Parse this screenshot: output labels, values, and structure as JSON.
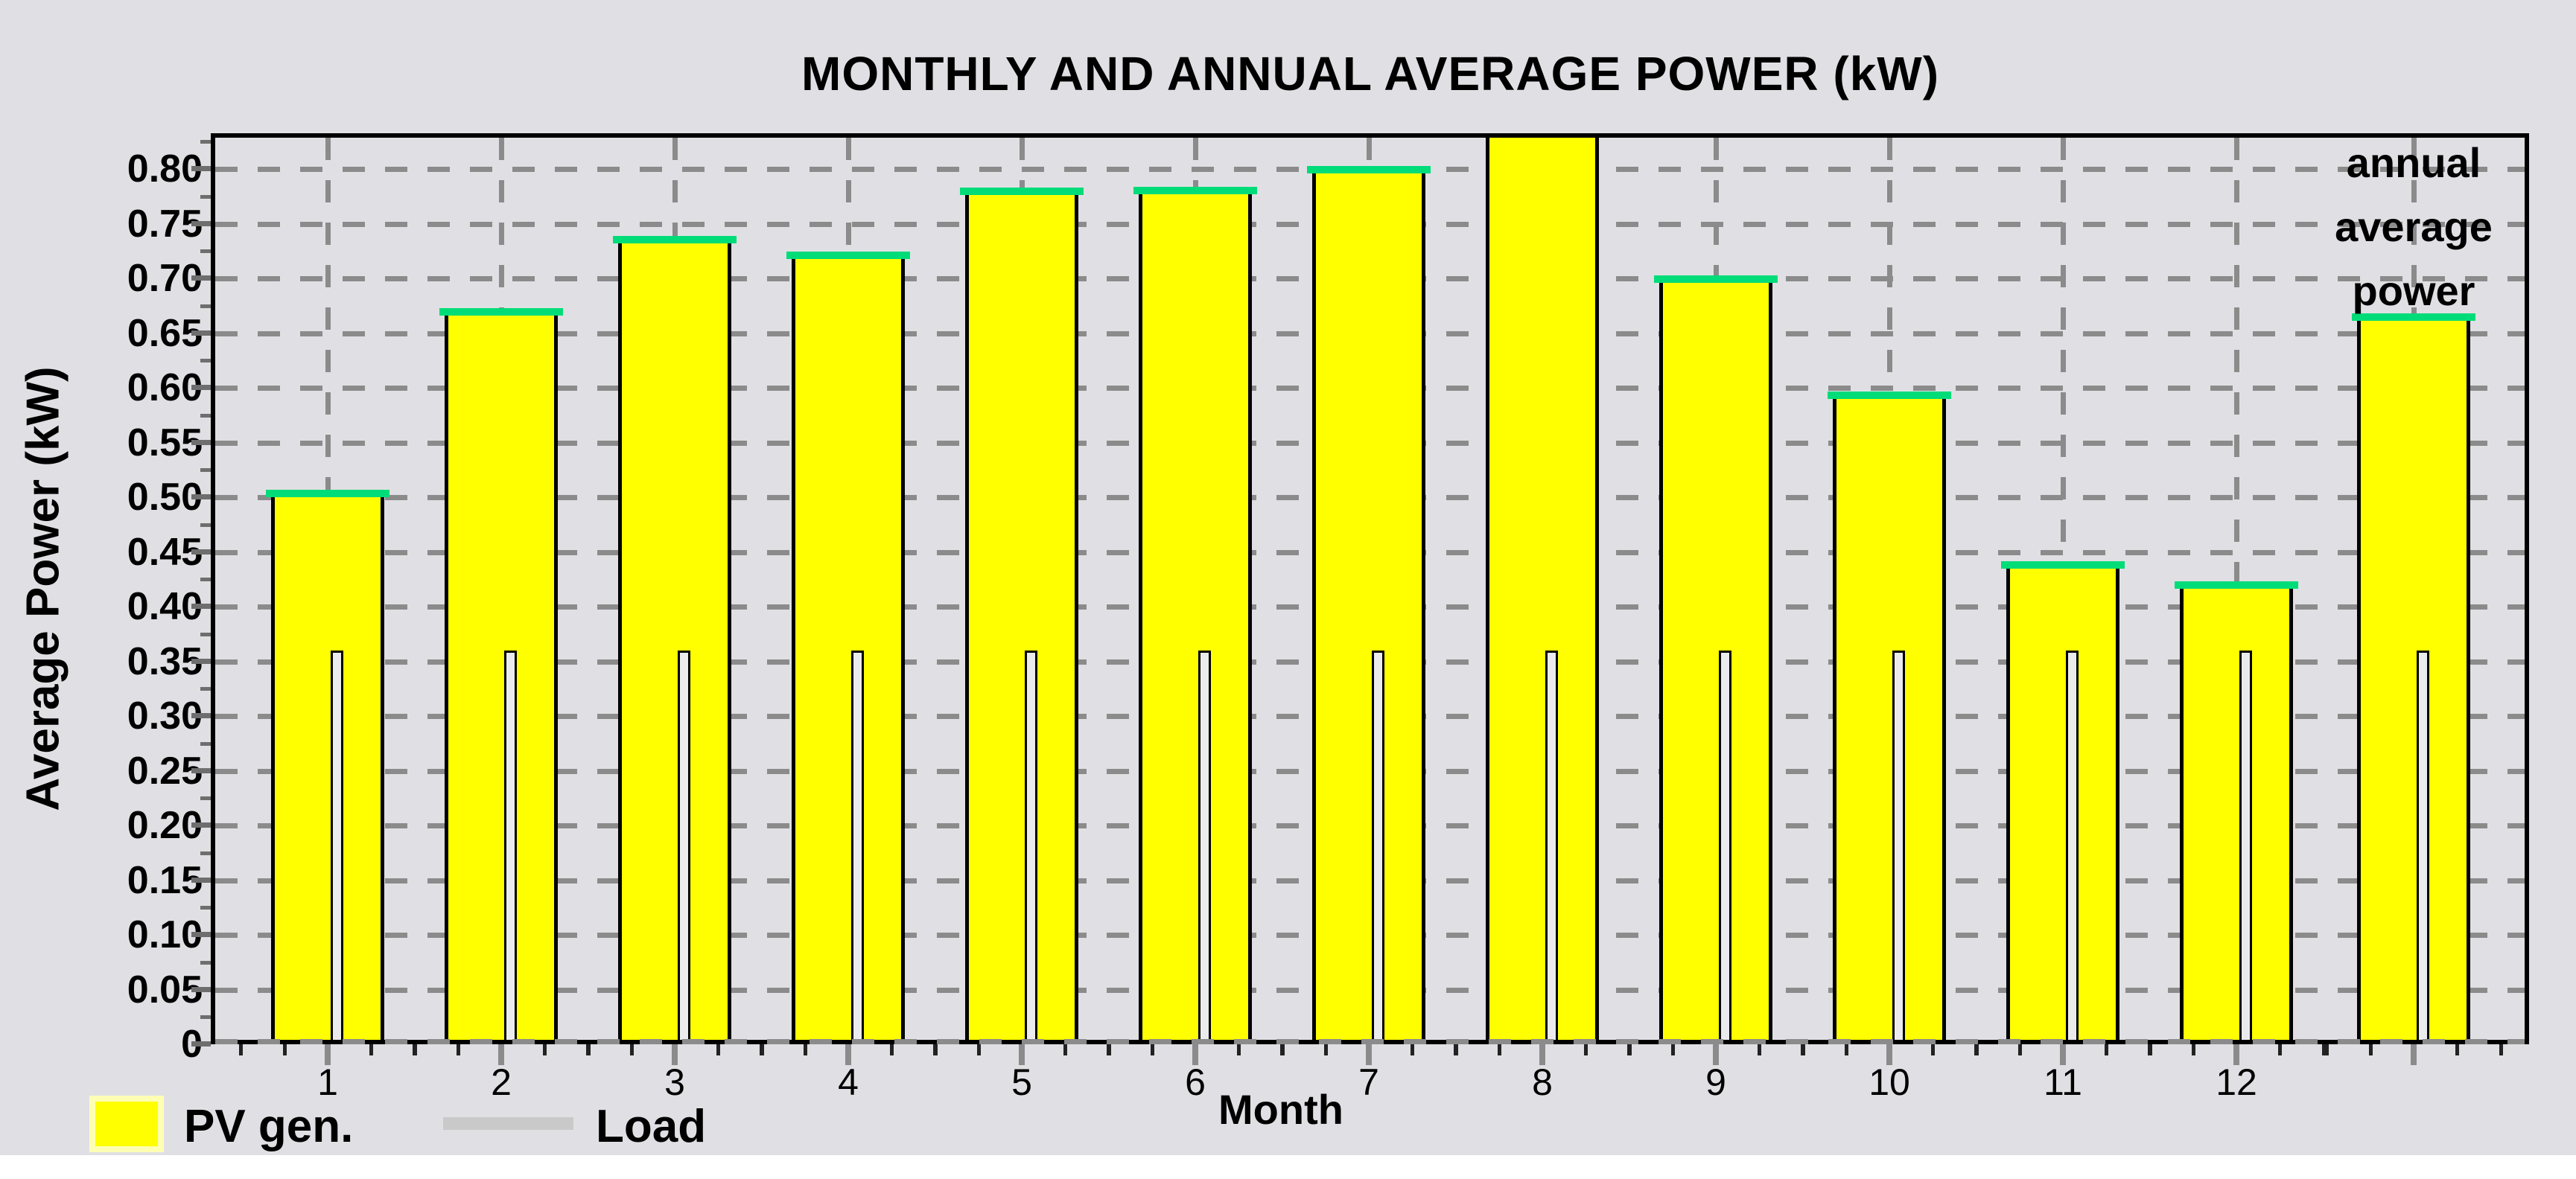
{
  "title": "MONTHLY AND ANNUAL AVERAGE POWER (kW)",
  "annual_label_lines": [
    "annual",
    "average",
    "power"
  ],
  "legend": {
    "pv_label": "PV gen.",
    "load_label": "Load"
  },
  "colors": {
    "panel_bg": "#e0e0e4",
    "grid": "#8b8b8b",
    "pv_fill": "#ffff00",
    "pv_edge": "#000000",
    "pv_cap": "#00dc78",
    "load_fill": "#ebebee",
    "load_edge": "#000000",
    "legend_line": "#c9c9c9",
    "legend_swatch_border": "#ffffb4",
    "text": "#000000"
  },
  "chart_data": {
    "type": "bar",
    "title": "MONTHLY AND ANNUAL AVERAGE POWER (kW)",
    "xlabel": "Month",
    "ylabel": "Average Power (kW)",
    "categories": [
      "1",
      "2",
      "3",
      "4",
      "5",
      "6",
      "7",
      "8",
      "9",
      "10",
      "11",
      "12",
      "annual"
    ],
    "series": [
      {
        "name": "PV gen.",
        "color": "#ffff00",
        "values": [
          0.5,
          0.666,
          0.732,
          0.718,
          0.776,
          0.777,
          0.796,
          0.84,
          0.696,
          0.59,
          0.435,
          0.416,
          0.661
        ]
      },
      {
        "name": "Load",
        "color": "#ebebee",
        "values": [
          0.36,
          0.36,
          0.36,
          0.36,
          0.36,
          0.36,
          0.36,
          0.36,
          0.36,
          0.36,
          0.36,
          0.36,
          0.36
        ]
      }
    ],
    "ylim": [
      0,
      0.833
    ],
    "y_tick_step": 0.05,
    "y_tick_labels": [
      "0",
      "0.05",
      "0.10",
      "0.15",
      "0.20",
      "0.25",
      "0.30",
      "0.35",
      "0.40",
      "0.45",
      "0.50",
      "0.55",
      "0.60",
      "0.65",
      "0.70",
      "0.75",
      "0.80"
    ],
    "x_tick_labels": [
      "1",
      "2",
      "3",
      "4",
      "5",
      "6",
      "7",
      "8",
      "9",
      "10",
      "11",
      "12"
    ],
    "grid": "dashed",
    "legend_position": "bottom-left",
    "annotation": "annual average power (13th bar)",
    "notes": "Month-8 PV bar exceeds the y-axis range and is clipped at the plot top (~0.833); every bar contains a narrow Load bar at 0.36 kW."
  }
}
